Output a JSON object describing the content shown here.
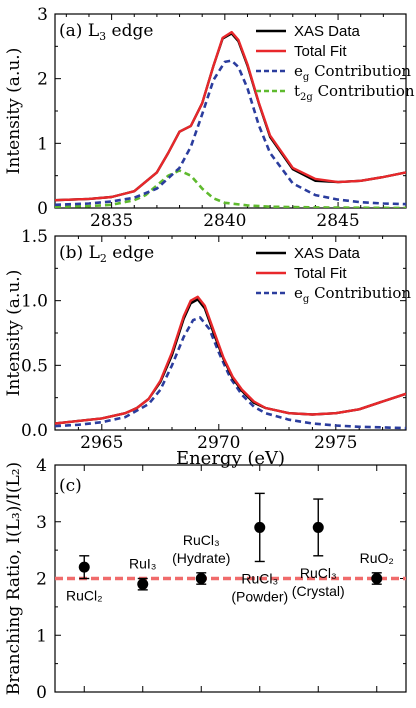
{
  "chart_data": [
    {
      "panel": "(a)",
      "type": "line",
      "title": "L₃ edge",
      "ylabel": "Intensity (a.u.)",
      "xlim": [
        2832.5,
        2848
      ],
      "ylim": [
        0,
        3
      ],
      "xticks": [
        2835,
        2840,
        2845
      ],
      "yticks": [
        0,
        1,
        2,
        3
      ],
      "legend_position": "top-right",
      "series": [
        {
          "name": "XAS Data",
          "color": "#000000",
          "dash": "solid",
          "x": [
            2832.5,
            2834,
            2835,
            2836,
            2837,
            2837.5,
            2838,
            2838.5,
            2839,
            2839.5,
            2839.9,
            2840.3,
            2840.6,
            2841,
            2841.5,
            2842,
            2843,
            2844,
            2845,
            2846,
            2847,
            2848
          ],
          "y": [
            0.12,
            0.14,
            0.17,
            0.26,
            0.55,
            0.85,
            1.18,
            1.27,
            1.62,
            2.2,
            2.62,
            2.7,
            2.58,
            2.2,
            1.62,
            1.1,
            0.6,
            0.42,
            0.4,
            0.42,
            0.48,
            0.55
          ]
        },
        {
          "name": "Total Fit",
          "color": "#e8282b",
          "dash": "solid",
          "x": [
            2832.5,
            2834,
            2835,
            2836,
            2837,
            2837.5,
            2838,
            2838.5,
            2839,
            2839.5,
            2839.9,
            2840.3,
            2840.6,
            2841,
            2841.5,
            2842,
            2843,
            2844,
            2845,
            2846,
            2847,
            2848
          ],
          "y": [
            0.12,
            0.14,
            0.17,
            0.26,
            0.55,
            0.85,
            1.18,
            1.27,
            1.62,
            2.2,
            2.63,
            2.72,
            2.6,
            2.22,
            1.63,
            1.12,
            0.62,
            0.45,
            0.4,
            0.42,
            0.48,
            0.55
          ]
        },
        {
          "name": "e_g Contribution",
          "color": "#2b3d9e",
          "dash": "dashed",
          "x": [
            2832.5,
            2834,
            2835,
            2836,
            2837,
            2838,
            2838.5,
            2839,
            2839.5,
            2840,
            2840.3,
            2840.6,
            2841,
            2841.5,
            2842,
            2843,
            2844,
            2845,
            2846,
            2847,
            2848
          ],
          "y": [
            0.05,
            0.07,
            0.1,
            0.16,
            0.3,
            0.62,
            0.95,
            1.45,
            1.98,
            2.26,
            2.28,
            2.18,
            1.85,
            1.28,
            0.85,
            0.38,
            0.2,
            0.13,
            0.09,
            0.07,
            0.06
          ]
        },
        {
          "name": "t_2g Contribution",
          "color": "#5fba2e",
          "dash": "dashed",
          "x": [
            2832.5,
            2834,
            2835,
            2836,
            2836.5,
            2837,
            2837.5,
            2838,
            2838.5,
            2839,
            2839.5,
            2840,
            2841,
            2842,
            2844,
            2848
          ],
          "y": [
            0.02,
            0.03,
            0.05,
            0.12,
            0.2,
            0.35,
            0.5,
            0.58,
            0.5,
            0.3,
            0.15,
            0.08,
            0.04,
            0.02,
            0.01,
            0.0
          ]
        }
      ]
    },
    {
      "panel": "(b)",
      "type": "line",
      "title": "L₂ edge",
      "xlabel": "Energy (eV)",
      "ylabel": "Intensity (a.u.)",
      "xlim": [
        2963,
        2978
      ],
      "ylim": [
        0,
        1.5
      ],
      "xticks": [
        2965,
        2970,
        2975
      ],
      "yticks": [
        0,
        0.5,
        1.0,
        1.5
      ],
      "legend_position": "top-right",
      "series": [
        {
          "name": "XAS Data",
          "color": "#000000",
          "dash": "solid",
          "x": [
            2963,
            2964,
            2965,
            2966,
            2966.5,
            2967,
            2967.5,
            2968,
            2968.5,
            2968.8,
            2969.1,
            2969.4,
            2969.8,
            2970.2,
            2970.6,
            2971,
            2971.5,
            2972,
            2973,
            2974,
            2975,
            2976,
            2977,
            2978
          ],
          "y": [
            0.05,
            0.07,
            0.09,
            0.13,
            0.17,
            0.24,
            0.37,
            0.58,
            0.86,
            0.98,
            1.01,
            0.94,
            0.74,
            0.55,
            0.4,
            0.3,
            0.21,
            0.17,
            0.13,
            0.12,
            0.13,
            0.16,
            0.22,
            0.28
          ]
        },
        {
          "name": "Total Fit",
          "color": "#e8282b",
          "dash": "solid",
          "x": [
            2963,
            2964,
            2965,
            2966,
            2966.5,
            2967,
            2967.5,
            2968,
            2968.5,
            2968.8,
            2969.1,
            2969.4,
            2969.8,
            2970.2,
            2970.6,
            2971,
            2971.5,
            2972,
            2973,
            2974,
            2975,
            2976,
            2977,
            2978
          ],
          "y": [
            0.05,
            0.07,
            0.09,
            0.13,
            0.17,
            0.24,
            0.38,
            0.6,
            0.88,
            1.0,
            1.03,
            0.96,
            0.76,
            0.56,
            0.41,
            0.31,
            0.22,
            0.17,
            0.13,
            0.12,
            0.13,
            0.16,
            0.22,
            0.28
          ]
        },
        {
          "name": "e_g Contribution",
          "color": "#2b3d9e",
          "dash": "dashed",
          "x": [
            2963,
            2964,
            2965,
            2966,
            2967,
            2967.5,
            2968,
            2968.5,
            2968.9,
            2969.2,
            2969.6,
            2970,
            2970.5,
            2971,
            2971.5,
            2972,
            2973,
            2974,
            2975,
            2976,
            2977,
            2978
          ],
          "y": [
            0.03,
            0.04,
            0.06,
            0.1,
            0.2,
            0.31,
            0.5,
            0.72,
            0.85,
            0.87,
            0.78,
            0.6,
            0.4,
            0.27,
            0.18,
            0.13,
            0.08,
            0.05,
            0.035,
            0.025,
            0.02,
            0.015
          ]
        }
      ]
    },
    {
      "panel": "(c)",
      "type": "scatter",
      "ylabel": "Branching Ratio, I(L₃)/I(L₂)",
      "ylim": [
        0,
        4
      ],
      "yticks": [
        0,
        1,
        2,
        3,
        4
      ],
      "xlim": [
        0.5,
        6.5
      ],
      "reference_line": {
        "y": 2,
        "color": "#f06b6b",
        "dash": "dashed"
      },
      "points": [
        {
          "label": "RuCl₂",
          "x": 1,
          "y": 2.2,
          "err_low": 0.2,
          "err_high": 0.2,
          "label_pos": "below"
        },
        {
          "label": "RuI₃",
          "x": 2,
          "y": 1.9,
          "err_low": 0.1,
          "err_high": 0.1,
          "label_pos": "above"
        },
        {
          "label": "RuCl₃\n(Hydrate)",
          "x": 3,
          "y": 2.0,
          "err_low": 0.1,
          "err_high": 0.1,
          "label_pos": "above"
        },
        {
          "label": "RuCl₃\n(Powder)",
          "x": 4,
          "y": 2.9,
          "err_low": 0.6,
          "err_high": 0.6,
          "label_pos": "below"
        },
        {
          "label": "RuCl₃\n(Crystal)",
          "x": 5,
          "y": 2.9,
          "err_low": 0.5,
          "err_high": 0.5,
          "label_pos": "below"
        },
        {
          "label": "RuO₂",
          "x": 6,
          "y": 2.0,
          "err_low": 0.1,
          "err_high": 0.1,
          "label_pos": "above"
        }
      ]
    }
  ]
}
